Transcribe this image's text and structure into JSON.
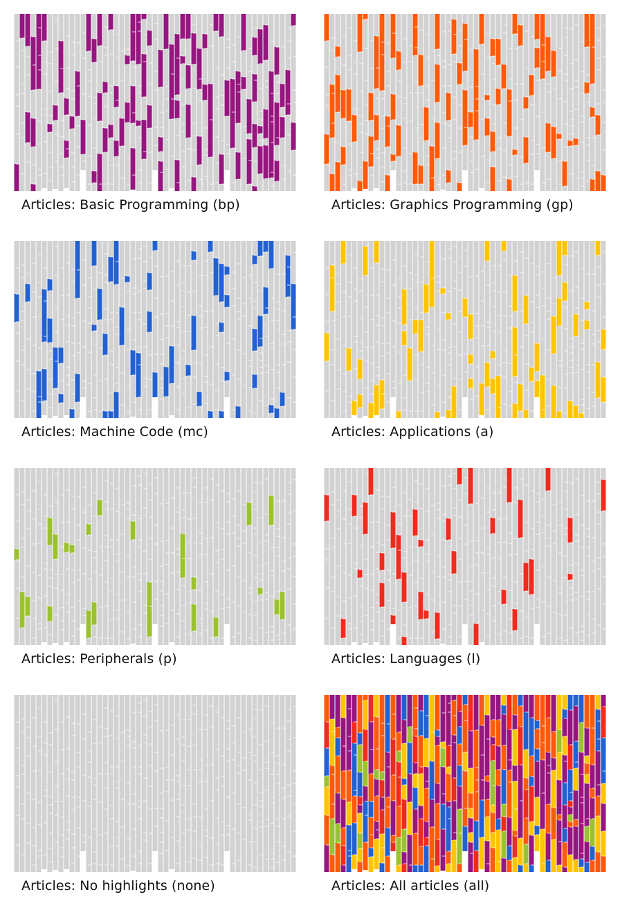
{
  "colors": {
    "bp": "#96167f",
    "gp": "#ff5a0a",
    "mc": "#2361d1",
    "a": "#ffc400",
    "p": "#9bc22e",
    "l": "#ef2b1f",
    "none": "#d2d2d2",
    "divider": "#ffffff"
  },
  "panels": [
    {
      "key": "bp",
      "caption": "Articles: Basic Programming (bp)"
    },
    {
      "key": "gp",
      "caption": "Articles: Graphics Programming (gp)"
    },
    {
      "key": "mc",
      "caption": "Articles: Machine Code (mc)"
    },
    {
      "key": "a",
      "caption": "Articles: Applications (a)"
    },
    {
      "key": "p",
      "caption": "Articles: Peripherals (p)"
    },
    {
      "key": "l",
      "caption": "Articles: Languages (l)"
    },
    {
      "key": "none",
      "caption": "Articles: No highlights (none)"
    },
    {
      "key": "all",
      "caption": "Articles: All articles (all)"
    }
  ],
  "chart_data": {
    "type": "heatmap",
    "description_of_encoding": "",
    "columns": 51,
    "rows": 14,
    "categories": [
      "bp",
      "gp",
      "mc",
      "a",
      "p",
      "l",
      "none"
    ]
  }
}
